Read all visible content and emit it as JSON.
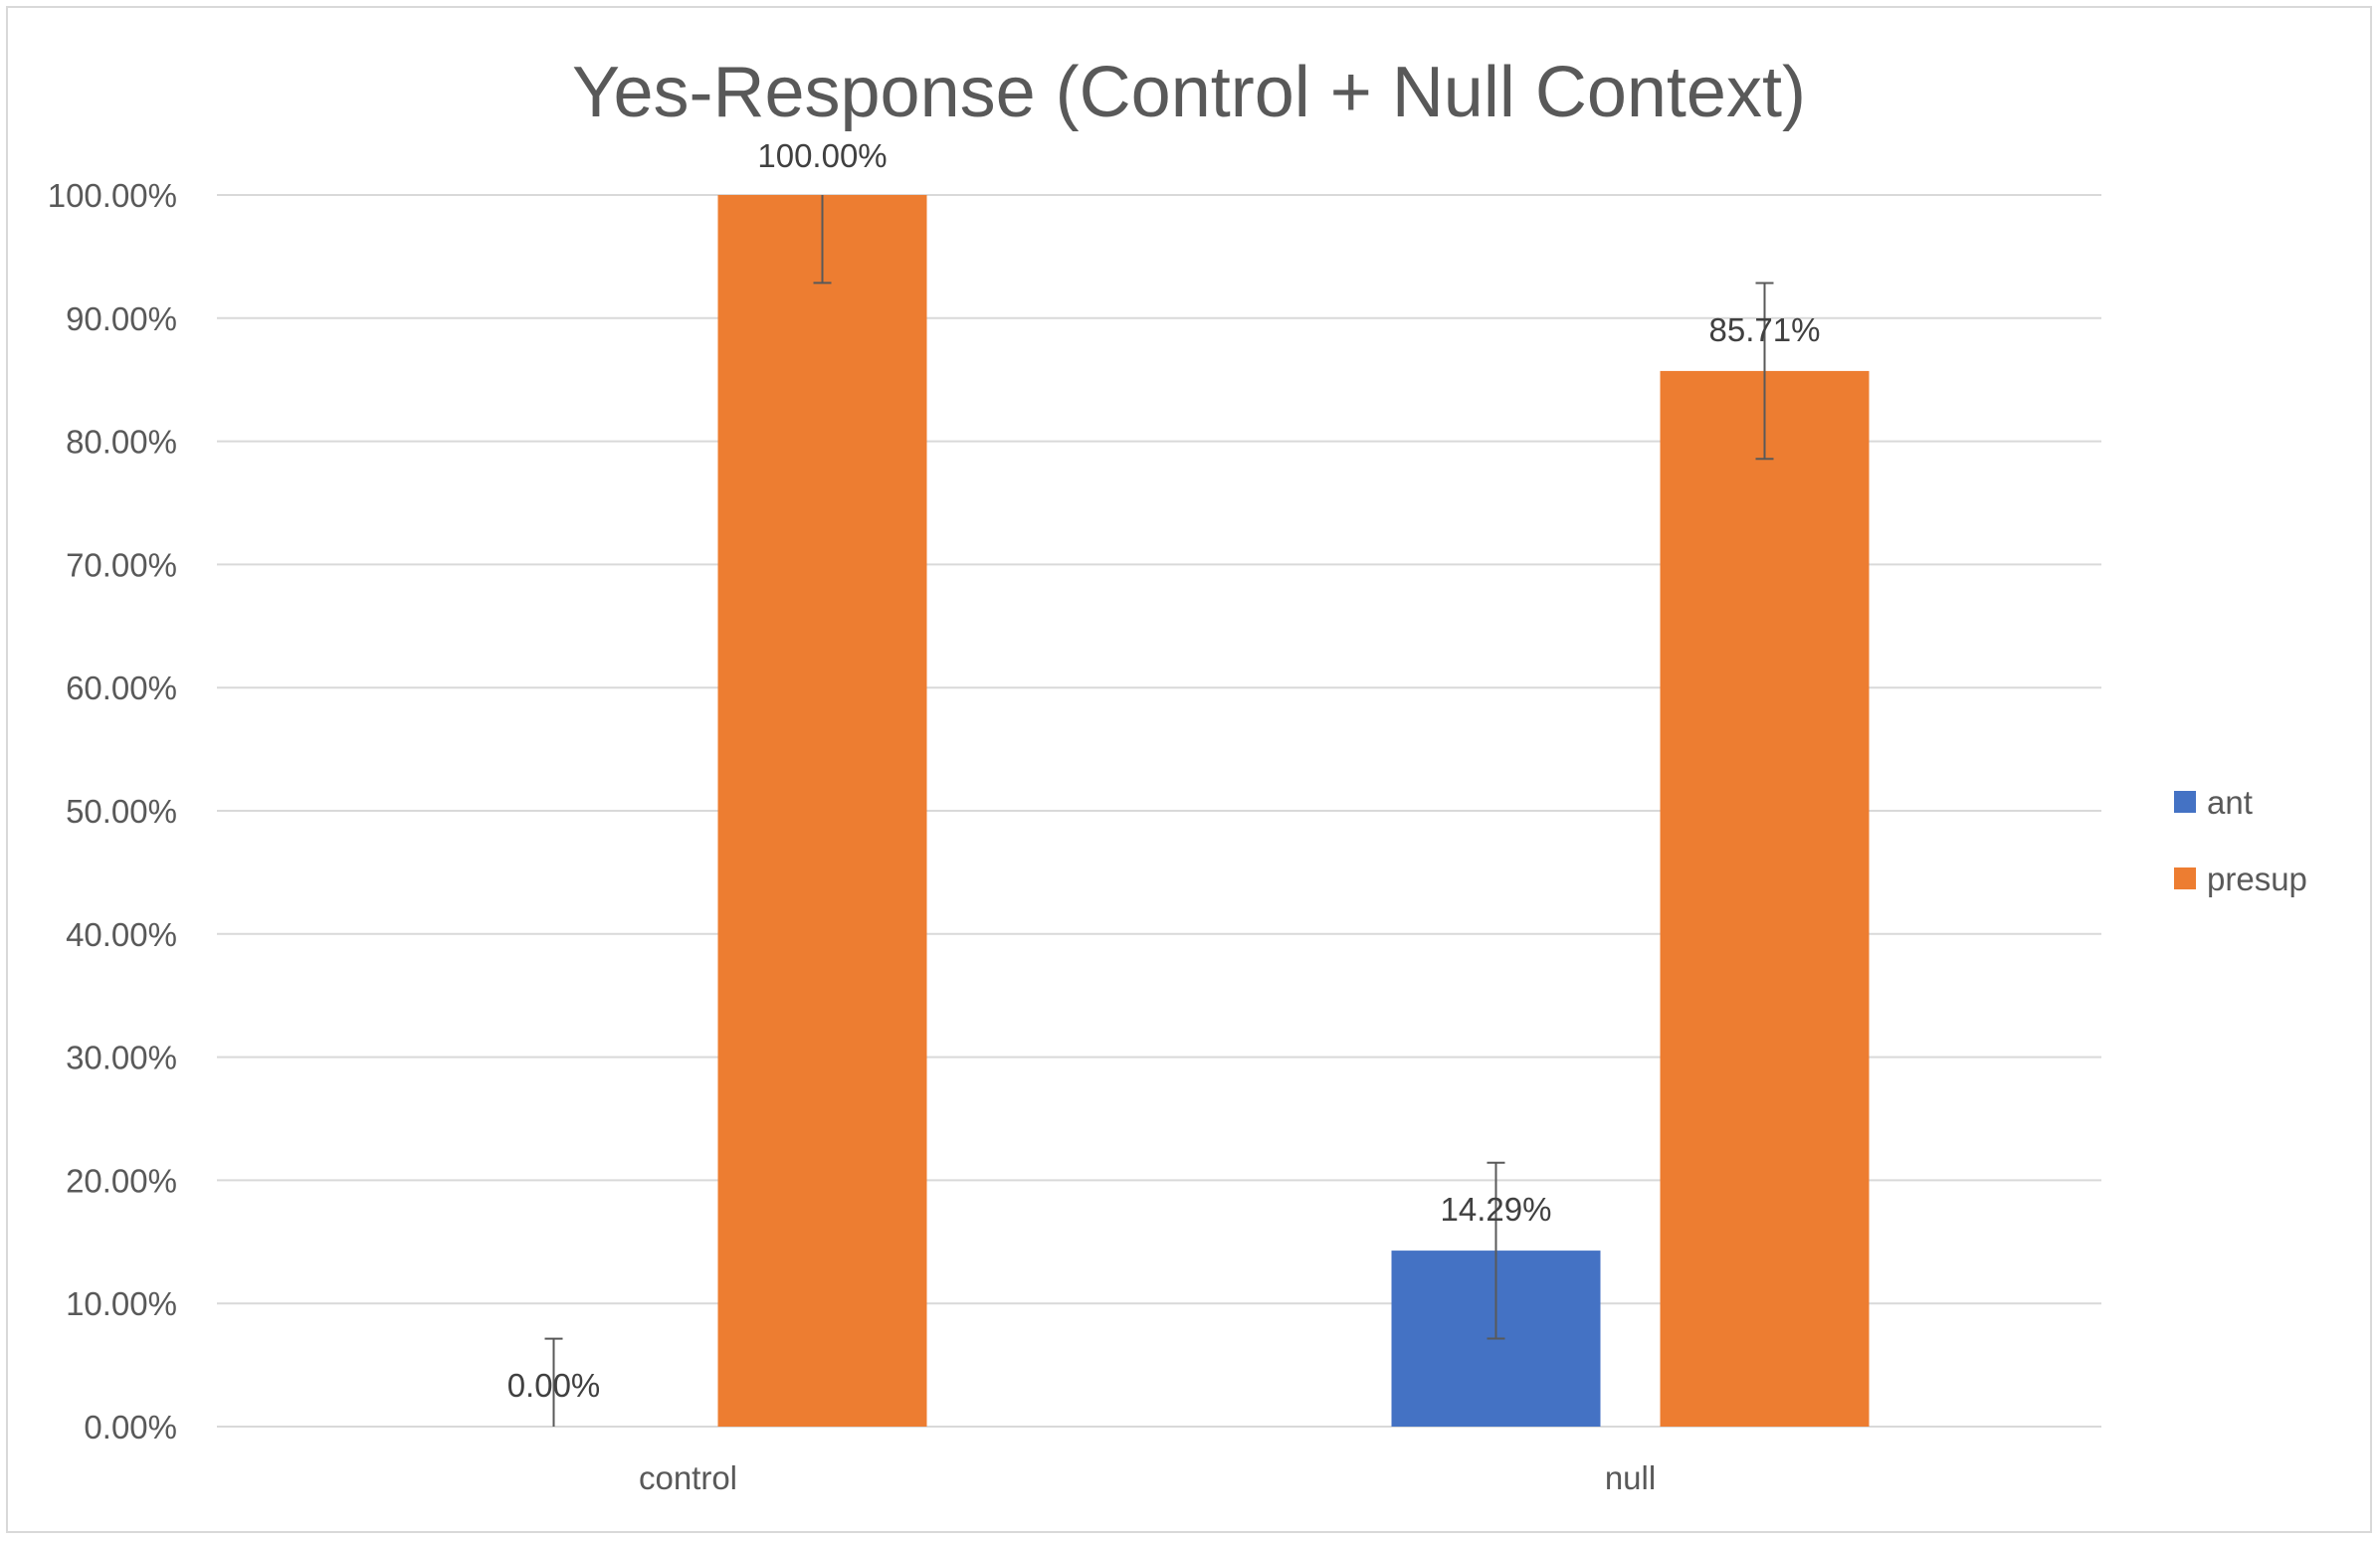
{
  "chart_data": {
    "type": "bar",
    "title": "Yes-Response (Control + Null Context)",
    "categories": [
      "control",
      "null"
    ],
    "series": [
      {
        "name": "ant",
        "color": "#4472C4",
        "values": [
          0.0,
          14.29
        ],
        "labels": [
          "0.00%",
          "14.29%"
        ],
        "error": [
          7.14,
          7.14
        ]
      },
      {
        "name": "presup",
        "color": "#ED7D31",
        "values": [
          100.0,
          85.71
        ],
        "labels": [
          "100.00%",
          "85.71%"
        ],
        "error": [
          7.14,
          7.14
        ]
      }
    ],
    "ylim": [
      0,
      100
    ],
    "yticks": [
      0,
      10,
      20,
      30,
      40,
      50,
      60,
      70,
      80,
      90,
      100
    ],
    "ytick_labels": [
      "0.00%",
      "10.00%",
      "20.00%",
      "30.00%",
      "40.00%",
      "50.00%",
      "60.00%",
      "70.00%",
      "80.00%",
      "90.00%",
      "100.00%"
    ],
    "grid": true,
    "legend": "right"
  }
}
